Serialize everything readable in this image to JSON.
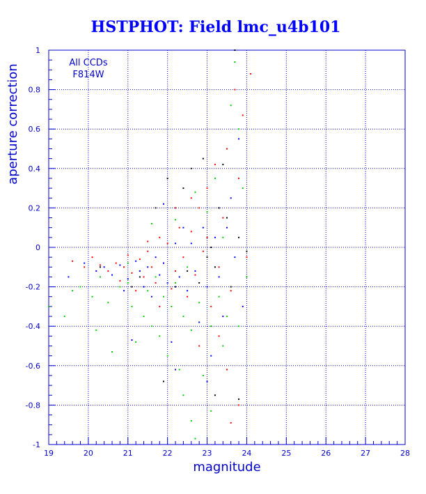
{
  "chart_data": {
    "type": "scatter",
    "title": "HSTPHOT: Field lmc_u4b101",
    "xlabel": "magnitude",
    "ylabel": "aperture correction",
    "xlim": [
      19,
      28
    ],
    "ylim": [
      -1,
      1
    ],
    "xticks": [
      19,
      20,
      21,
      22,
      23,
      24,
      25,
      26,
      27,
      28
    ],
    "yticks": [
      -1,
      -0.8,
      -0.6,
      -0.4,
      -0.2,
      0,
      0.2,
      0.4,
      0.6,
      0.8,
      1
    ],
    "grid": true,
    "annotations": [
      "All CCDs",
      "F814W"
    ],
    "colors": {
      "frame": "#0000cc",
      "grid": "#0000cc",
      "title": "#0000ff",
      "series": [
        "#ff0000",
        "#00cc00",
        "#0000ff",
        "#000000"
      ]
    },
    "series": [
      {
        "color": "#ff0000",
        "points": [
          [
            19.6,
            -0.07
          ],
          [
            19.9,
            -0.1
          ],
          [
            20.1,
            -0.05
          ],
          [
            20.3,
            -0.09
          ],
          [
            20.5,
            -0.12
          ],
          [
            20.7,
            -0.08
          ],
          [
            20.9,
            -0.1
          ],
          [
            21.0,
            -0.04
          ],
          [
            21.1,
            -0.13
          ],
          [
            21.3,
            -0.06
          ],
          [
            21.4,
            -0.15
          ],
          [
            21.5,
            -0.02
          ],
          [
            21.6,
            -0.1
          ],
          [
            21.7,
            -0.18
          ],
          [
            21.8,
            0.05
          ],
          [
            21.9,
            -0.08
          ],
          [
            22.0,
            0.02
          ],
          [
            22.1,
            -0.21
          ],
          [
            22.2,
            -0.12
          ],
          [
            22.3,
            0.1
          ],
          [
            22.4,
            -0.05
          ],
          [
            22.5,
            -0.25
          ],
          [
            22.6,
            0.08
          ],
          [
            22.7,
            -0.14
          ],
          [
            22.8,
            0.2
          ],
          [
            22.9,
            -0.02
          ],
          [
            23.0,
            0.3
          ],
          [
            23.1,
            -0.3
          ],
          [
            23.2,
            0.42
          ],
          [
            23.3,
            -0.1
          ],
          [
            23.4,
            0.15
          ],
          [
            23.5,
            0.5
          ],
          [
            23.6,
            -0.22
          ],
          [
            23.7,
            0.8
          ],
          [
            23.8,
            0.35
          ],
          [
            23.9,
            0.67
          ],
          [
            24.0,
            -0.05
          ],
          [
            24.1,
            0.88
          ],
          [
            22.2,
            0.2
          ],
          [
            21.8,
            -0.3
          ],
          [
            23.3,
            -0.45
          ],
          [
            22.8,
            -0.5
          ],
          [
            23.5,
            -0.62
          ],
          [
            23.8,
            -0.8
          ],
          [
            23.6,
            -0.89
          ],
          [
            20.8,
            -0.17
          ],
          [
            21.2,
            -0.22
          ],
          [
            22.6,
            0.25
          ],
          [
            23.0,
            0.05
          ],
          [
            21.5,
            0.03
          ]
        ]
      },
      {
        "color": "#00cc00",
        "points": [
          [
            19.0,
            -0.3
          ],
          [
            19.4,
            -0.35
          ],
          [
            19.8,
            -0.2
          ],
          [
            20.1,
            -0.25
          ],
          [
            20.3,
            -0.15
          ],
          [
            20.5,
            -0.28
          ],
          [
            20.6,
            -0.53
          ],
          [
            20.8,
            -0.2
          ],
          [
            21.0,
            -0.18
          ],
          [
            21.1,
            -0.3
          ],
          [
            21.2,
            -0.48
          ],
          [
            21.3,
            -0.12
          ],
          [
            21.4,
            -0.35
          ],
          [
            21.5,
            -0.22
          ],
          [
            21.6,
            -0.4
          ],
          [
            21.7,
            -0.15
          ],
          [
            21.8,
            -0.45
          ],
          [
            21.9,
            -0.25
          ],
          [
            22.0,
            -0.55
          ],
          [
            22.1,
            -0.3
          ],
          [
            22.2,
            -0.18
          ],
          [
            22.3,
            -0.62
          ],
          [
            22.4,
            -0.35
          ],
          [
            22.5,
            -0.1
          ],
          [
            22.6,
            -0.42
          ],
          [
            22.7,
            0.28
          ],
          [
            22.8,
            -0.28
          ],
          [
            22.9,
            -0.65
          ],
          [
            23.0,
            0.18
          ],
          [
            23.1,
            -0.4
          ],
          [
            23.2,
            0.35
          ],
          [
            23.3,
            -0.25
          ],
          [
            23.4,
            0.05
          ],
          [
            23.5,
            -0.35
          ],
          [
            23.6,
            0.72
          ],
          [
            23.7,
            0.94
          ],
          [
            23.8,
            0.6
          ],
          [
            23.9,
            0.3
          ],
          [
            24.0,
            -0.15
          ],
          [
            22.6,
            -0.88
          ],
          [
            22.7,
            -0.97
          ],
          [
            23.1,
            -0.83
          ],
          [
            22.4,
            -0.75
          ],
          [
            21.0,
            -0.08
          ],
          [
            21.6,
            0.12
          ],
          [
            22.2,
            0.14
          ],
          [
            23.4,
            -0.5
          ],
          [
            20.2,
            -0.42
          ],
          [
            19.6,
            -0.22
          ],
          [
            23.8,
            -0.4
          ]
        ]
      },
      {
        "color": "#0000ff",
        "points": [
          [
            19.5,
            -0.15
          ],
          [
            19.9,
            -0.08
          ],
          [
            20.2,
            -0.12
          ],
          [
            20.4,
            -0.1
          ],
          [
            20.6,
            -0.14
          ],
          [
            20.8,
            -0.09
          ],
          [
            21.0,
            -0.16
          ],
          [
            21.1,
            -0.47
          ],
          [
            21.2,
            -0.07
          ],
          [
            21.3,
            -0.12
          ],
          [
            21.4,
            -0.2
          ],
          [
            21.5,
            -0.1
          ],
          [
            21.6,
            -0.25
          ],
          [
            21.7,
            -0.05
          ],
          [
            21.8,
            -0.14
          ],
          [
            21.9,
            -0.08
          ],
          [
            22.0,
            -0.18
          ],
          [
            22.1,
            -0.48
          ],
          [
            22.2,
            0.02
          ],
          [
            22.3,
            -0.15
          ],
          [
            22.4,
            0.1
          ],
          [
            22.5,
            -0.22
          ],
          [
            22.6,
            0.02
          ],
          [
            22.7,
            -0.12
          ],
          [
            22.8,
            -0.38
          ],
          [
            22.9,
            0.1
          ],
          [
            23.0,
            -0.2
          ],
          [
            23.1,
            -0.55
          ],
          [
            23.2,
            0.05
          ],
          [
            23.3,
            -0.15
          ],
          [
            23.4,
            -0.35
          ],
          [
            23.5,
            0.1
          ],
          [
            23.6,
            0.25
          ],
          [
            23.7,
            -0.05
          ],
          [
            23.8,
            0.55
          ],
          [
            23.9,
            -0.3
          ],
          [
            22.2,
            -0.62
          ],
          [
            21.9,
            0.22
          ],
          [
            23.0,
            -0.68
          ],
          [
            20.9,
            -0.22
          ]
        ]
      },
      {
        "color": "#000000",
        "points": [
          [
            20.3,
            -0.1
          ],
          [
            21.3,
            -0.15
          ],
          [
            21.7,
            0.2
          ],
          [
            21.9,
            -0.68
          ],
          [
            22.0,
            0.35
          ],
          [
            22.2,
            -0.2
          ],
          [
            22.5,
            -0.12
          ],
          [
            22.8,
            -0.18
          ],
          [
            22.9,
            0.45
          ],
          [
            23.0,
            -0.05
          ],
          [
            23.1,
            0.0
          ],
          [
            23.2,
            -0.1
          ],
          [
            23.3,
            0.2
          ],
          [
            23.5,
            0.15
          ],
          [
            23.7,
            1.0
          ],
          [
            23.6,
            -0.2
          ],
          [
            23.8,
            0.05
          ],
          [
            24.0,
            -0.02
          ],
          [
            23.2,
            -0.75
          ],
          [
            23.8,
            -0.77
          ],
          [
            22.4,
            0.3
          ],
          [
            23.4,
            0.42
          ],
          [
            21.1,
            -0.2
          ],
          [
            22.6,
            0.4
          ]
        ]
      }
    ]
  }
}
